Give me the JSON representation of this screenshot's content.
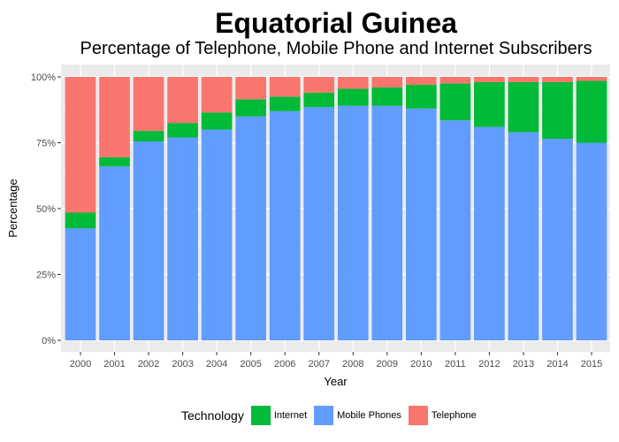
{
  "chart_data": {
    "type": "bar",
    "stacked": true,
    "title": "Equatorial Guinea",
    "subtitle": "Percentage of Telephone, Mobile Phone and Internet Subscribers",
    "xlabel": "Year",
    "ylabel": "Percentage",
    "ylim": [
      0,
      100
    ],
    "yticks": [
      "0%",
      "25%",
      "50%",
      "75%",
      "100%"
    ],
    "categories": [
      "2000",
      "2001",
      "2002",
      "2003",
      "2004",
      "2005",
      "2006",
      "2007",
      "2008",
      "2009",
      "2010",
      "2011",
      "2012",
      "2013",
      "2014",
      "2015"
    ],
    "series": [
      {
        "name": "Mobile Phones",
        "color": "#619CFF",
        "values": [
          42.5,
          66,
          75.5,
          77,
          80,
          85,
          87,
          88.5,
          89,
          89,
          88,
          83.5,
          81,
          79,
          76.5,
          75
        ]
      },
      {
        "name": "Internet",
        "color": "#00BA38",
        "values": [
          6,
          3.5,
          4,
          5.5,
          6.5,
          6.5,
          5.5,
          5.5,
          6.5,
          7,
          9,
          14,
          17,
          19,
          21.5,
          23.5
        ]
      },
      {
        "name": "Telephone",
        "color": "#F8766D",
        "values": [
          51.5,
          30.5,
          20.5,
          17.5,
          13.5,
          8.5,
          7.5,
          6,
          4.5,
          4,
          3,
          2.5,
          2,
          2,
          2,
          1.5
        ]
      }
    ],
    "grid": true,
    "legend": {
      "title": "Technology",
      "position": "bottom",
      "order": [
        "Internet",
        "Mobile Phones",
        "Telephone"
      ]
    }
  }
}
